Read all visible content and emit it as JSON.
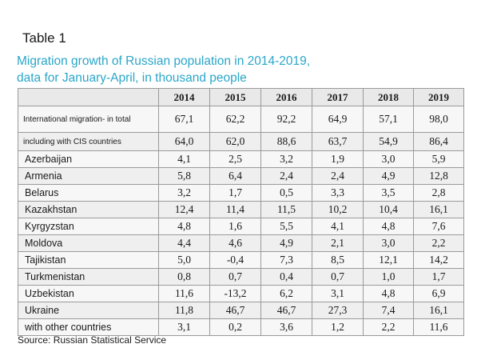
{
  "caption": "Table 1",
  "subtitle_lines": [
    "Migration growth of Russian population in 2014-2019,",
    "data for January-April, in thousand people"
  ],
  "table": {
    "corner": "",
    "years": [
      "2014",
      "2015",
      "2016",
      "2017",
      "2018",
      "2019"
    ],
    "rows": [
      {
        "label": "International migration- in total",
        "values": [
          "67,1",
          "62,2",
          "92,2",
          "64,9",
          "57,1",
          "98,0"
        ]
      },
      {
        "label": "including with CIS countries",
        "values": [
          "64,0",
          "62,0",
          "88,6",
          "63,7",
          "54,9",
          "86,4"
        ]
      },
      {
        "label": "Azerbaijan",
        "values": [
          "4,1",
          "2,5",
          "3,2",
          "1,9",
          "3,0",
          "5,9"
        ]
      },
      {
        "label": "Armenia",
        "values": [
          "5,8",
          "6,4",
          "2,4",
          "2,4",
          "4,9",
          "12,8"
        ]
      },
      {
        "label": "Belarus",
        "values": [
          "3,2",
          "1,7",
          "0,5",
          "3,3",
          "3,5",
          "2,8"
        ]
      },
      {
        "label": "Kazakhstan",
        "values": [
          "12,4",
          "11,4",
          "11,5",
          "10,2",
          "10,4",
          "16,1"
        ]
      },
      {
        "label": "Kyrgyzstan",
        "values": [
          "4,8",
          "1,6",
          "5,5",
          "4,1",
          "4,8",
          "7,6"
        ]
      },
      {
        "label": "Moldova",
        "values": [
          "4,4",
          "4,6",
          "4,9",
          "2,1",
          "3,0",
          "2,2"
        ]
      },
      {
        "label": "Tajikistan",
        "values": [
          "5,0",
          "-0,4",
          "7,3",
          "8,5",
          "12,1",
          "14,2"
        ]
      },
      {
        "label": "Turkmenistan",
        "values": [
          "0,8",
          "0,7",
          "0,4",
          "0,7",
          "1,0",
          "1,7"
        ]
      },
      {
        "label": "Uzbekistan",
        "values": [
          "11,6",
          "-13,2",
          "6,2",
          "3,1",
          "4,8",
          "6,9"
        ]
      },
      {
        "label": "Ukraine",
        "values": [
          "11,8",
          "46,7",
          "46,7",
          "27,3",
          "7,4",
          "16,1"
        ]
      },
      {
        "label": "with other countries",
        "values": [
          "3,1",
          "0,2",
          "3,6",
          "1,2",
          "2,2",
          "11,6"
        ]
      }
    ]
  },
  "source": "Source: Russian Statistical Service"
}
